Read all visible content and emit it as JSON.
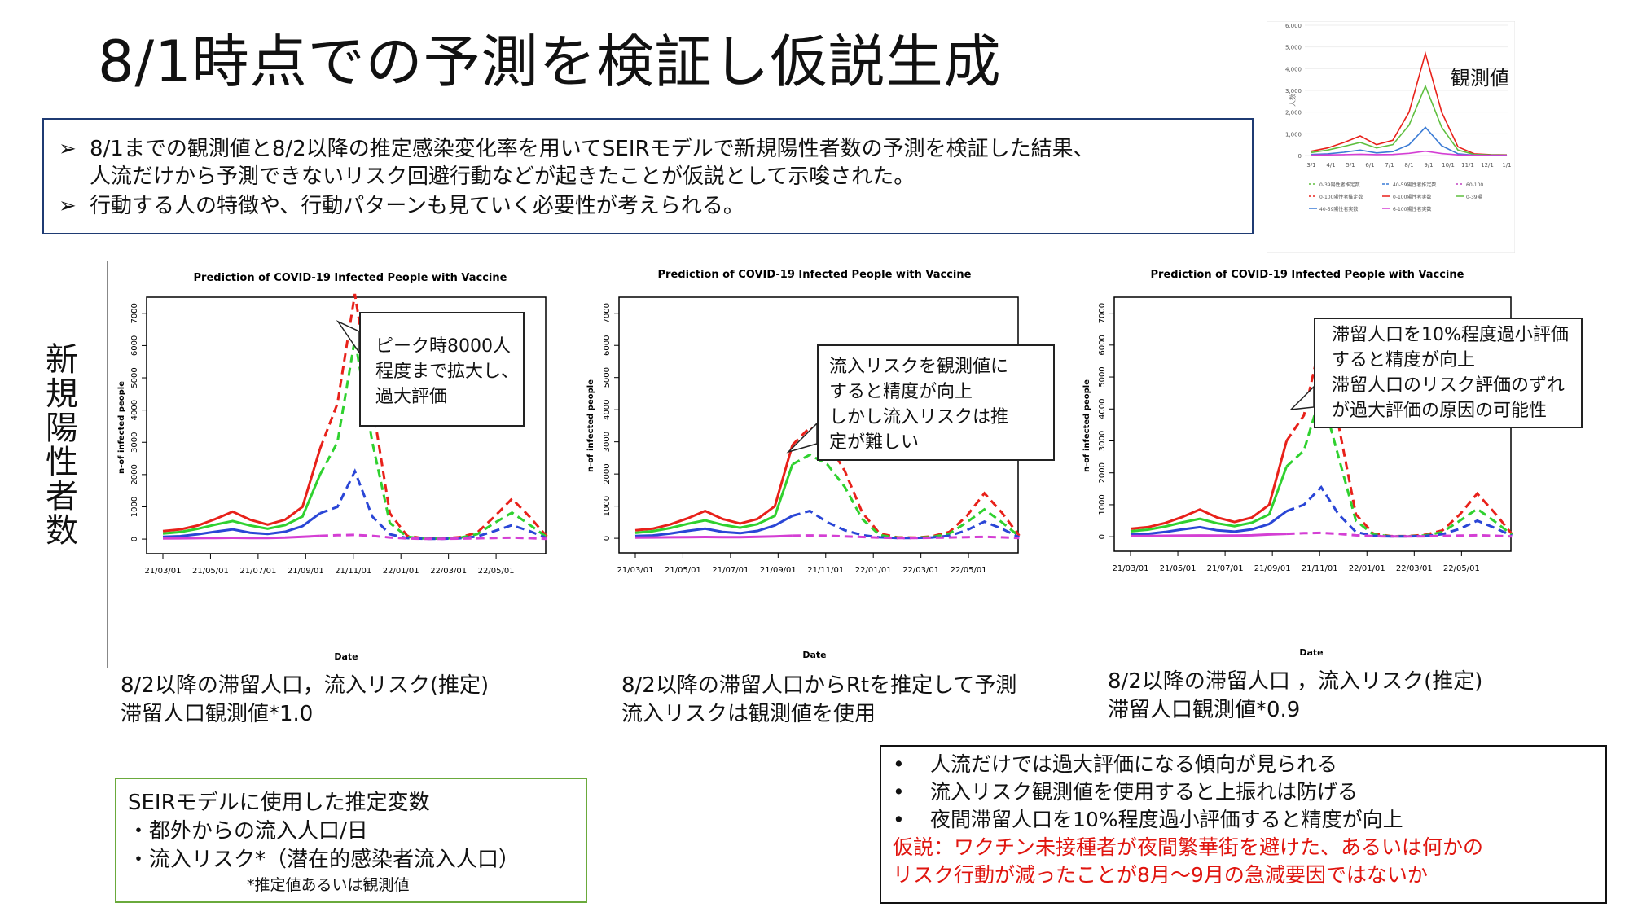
{
  "title": "8/1時点での予測を検証し仮説生成",
  "summary": {
    "bullet1_line1": "8/1までの観測値と8/2以降の推定感染変化率を用いてSEIRモデルで新規陽性者数の予測を検証した結果、",
    "bullet1_line2": "人流だけから予測できないリスク回避行動などが起きたことが仮説として示唆された。",
    "bullet2": "行動する人の特徴や、行動パターンも見ていく必要性が考えられる。",
    "marker": "➢"
  },
  "y_side_label": "新規陽性者数",
  "observed_label": "観測値",
  "captions": {
    "c1_line1": "8/2以降の滞留人口，流入リスク(推定)",
    "c1_line2": "滞留人口観測値*1.0",
    "c2_line1": "8/2以降の滞留人口からRtを推定して予測",
    "c2_line2": "流入リスクは観測値を使用",
    "c3_line1": "8/2以降の滞留人口 ，流入リスク(推定)",
    "c3_line2": "滞留人口観測値*0.9"
  },
  "callouts": {
    "a": [
      "ピーク時8000人",
      "程度まで拡大し、",
      "過大評価"
    ],
    "b": [
      "流入リスクを観測値に",
      "すると精度が向上",
      "しかし流入リスクは推",
      "定が難しい"
    ],
    "c": [
      "滞留人口を10%程度過小評価",
      "すると精度が向上",
      "滞留人口のリスク評価のずれ",
      "が過大評価の原因の可能性"
    ]
  },
  "variables": {
    "heading": "SEIRモデルに使用した推定変数",
    "item1": "・都外からの流入人口/日",
    "item2": "・流入リスク*（潜在的感染者流入人口）",
    "note": "*推定値あるいは観測値"
  },
  "conclusions": {
    "bullet": "•",
    "item1": "人流だけでは過大評価になる傾向が見られる",
    "item2": "流入リスク観測値を使用すると上振れは防げる",
    "item3": "夜間滞留人口を10%程度過小評価すると精度が向上",
    "hyp1": "仮説：ワクチン未接種者が夜間繁華街を避けた、あるいは何かの",
    "hyp2": "リスク行動が減ったことが8月〜9月の急減要因ではないか"
  },
  "chart_data": [
    {
      "type": "line",
      "title": "Prediction of COVID-19 Infected People with Vaccine",
      "xlabel": "Date",
      "ylabel": "n-of infected people",
      "x_tick_labels": [
        "21/03/01",
        "21/05/01",
        "21/07/01",
        "21/09/01",
        "21/11/01",
        "22/01/01",
        "22/03/01",
        "22/05/01"
      ],
      "y_tick_labels": [
        "0",
        "1000",
        "2000",
        "3000",
        "4000",
        "5000",
        "6000",
        "7000"
      ],
      "ylim": [
        -200,
        7500
      ],
      "x_index_range": [
        0,
        21
      ],
      "x_note": "x is half-month index from 2021-03-01",
      "series": [
        {
          "color": "#e8211a",
          "values": [
            250,
            300,
            420,
            620,
            850,
            600,
            450,
            600,
            1000,
            2800,
            4200,
            7600,
            4200,
            800,
            100,
            20,
            20,
            60,
            200,
            700,
            1250,
            700,
            80
          ]
        },
        {
          "color": "#2fd12f",
          "values": [
            170,
            220,
            320,
            450,
            560,
            420,
            320,
            430,
            700,
            2000,
            3000,
            6200,
            3000,
            500,
            70,
            15,
            15,
            40,
            150,
            500,
            820,
            450,
            60
          ]
        },
        {
          "color": "#2a46d6",
          "values": [
            70,
            90,
            150,
            230,
            300,
            200,
            160,
            230,
            400,
            800,
            1000,
            2100,
            700,
            150,
            30,
            10,
            10,
            25,
            80,
            250,
            430,
            250,
            30
          ]
        },
        {
          "color": "#d43fd4",
          "values": [
            20,
            25,
            30,
            35,
            40,
            35,
            35,
            45,
            70,
            100,
            120,
            130,
            100,
            50,
            20,
            10,
            10,
            15,
            25,
            35,
            45,
            30,
            10
          ]
        }
      ]
    },
    {
      "type": "line",
      "title": "Prediction of COVID-19 Infected People with Vaccine",
      "xlabel": "Date",
      "ylabel": "n-of infected people",
      "x_tick_labels": [
        "21/03/01",
        "21/05/01",
        "21/07/01",
        "21/09/01",
        "21/11/01",
        "22/01/01",
        "22/03/01",
        "22/05/01"
      ],
      "y_tick_labels": [
        "0",
        "1000",
        "2000",
        "3000",
        "4000",
        "5000",
        "6000",
        "7000"
      ],
      "ylim": [
        -200,
        7500
      ],
      "x_index_range": [
        0,
        21
      ],
      "x_note": "x is half-month index from 2021-03-01",
      "series": [
        {
          "color": "#e8211a",
          "values": [
            250,
            300,
            430,
            620,
            850,
            600,
            460,
            600,
            1000,
            2900,
            3450,
            3000,
            2100,
            800,
            150,
            30,
            20,
            60,
            200,
            700,
            1400,
            800,
            80
          ]
        },
        {
          "color": "#2fd12f",
          "values": [
            170,
            220,
            320,
            450,
            560,
            420,
            330,
            440,
            700,
            2300,
            2600,
            2300,
            1600,
            600,
            100,
            20,
            15,
            40,
            150,
            500,
            900,
            500,
            60
          ]
        },
        {
          "color": "#2a46d6",
          "values": [
            70,
            90,
            150,
            230,
            300,
            200,
            160,
            230,
            400,
            700,
            850,
            500,
            250,
            100,
            30,
            10,
            10,
            25,
            80,
            250,
            520,
            300,
            30
          ]
        },
        {
          "color": "#d43fd4",
          "values": [
            20,
            25,
            30,
            35,
            40,
            35,
            35,
            45,
            60,
            80,
            90,
            80,
            60,
            40,
            20,
            10,
            10,
            15,
            25,
            35,
            45,
            30,
            10
          ]
        }
      ]
    },
    {
      "type": "line",
      "title": "Prediction of COVID-19 Infected People with Vaccine",
      "xlabel": "Date",
      "ylabel": "n-of infected people",
      "x_tick_labels": [
        "21/03/01",
        "21/05/01",
        "21/07/01",
        "21/09/01",
        "21/11/01",
        "22/01/01",
        "22/03/01",
        "22/05/01"
      ],
      "y_tick_labels": [
        "0",
        "1000",
        "2000",
        "3000",
        "4000",
        "5000",
        "6000",
        "7000"
      ],
      "ylim": [
        -200,
        7500
      ],
      "x_index_range": [
        0,
        21
      ],
      "x_note": "x is half-month index from 2021-03-01",
      "series": [
        {
          "color": "#e8211a",
          "values": [
            250,
            300,
            430,
            620,
            850,
            600,
            460,
            600,
            1000,
            3000,
            3800,
            6200,
            3500,
            700,
            100,
            20,
            20,
            60,
            200,
            700,
            1350,
            750,
            80
          ]
        },
        {
          "color": "#2fd12f",
          "values": [
            170,
            220,
            320,
            450,
            560,
            420,
            330,
            440,
            700,
            2200,
            2700,
            4500,
            2500,
            500,
            70,
            15,
            15,
            40,
            150,
            500,
            870,
            480,
            60
          ]
        },
        {
          "color": "#2a46d6",
          "values": [
            70,
            90,
            150,
            230,
            300,
            200,
            160,
            230,
            400,
            800,
            1000,
            1550,
            700,
            150,
            30,
            10,
            10,
            25,
            80,
            250,
            500,
            280,
            30
          ]
        },
        {
          "color": "#d43fd4",
          "values": [
            20,
            25,
            30,
            35,
            40,
            35,
            35,
            45,
            70,
            90,
            110,
            120,
            90,
            45,
            20,
            10,
            10,
            15,
            25,
            35,
            45,
            30,
            10
          ]
        }
      ]
    },
    {
      "type": "line",
      "ylabel": "人数",
      "x_tick_labels": [
        "3/1",
        "4/1",
        "5/1",
        "6/1",
        "7/1",
        "8/1",
        "9/1",
        "10/1",
        "11/1",
        "12/1",
        "1/1"
      ],
      "y_tick_labels": [
        "0",
        "1,000",
        "2,000",
        "3,000",
        "4,000",
        "5,000",
        "6,000"
      ],
      "ylim": [
        0,
        6000
      ],
      "legend": [
        "0-39陽性者推定数",
        "40-59陽性者推定数",
        "60-100",
        "0-100陽性者推定数",
        "0-100陽性者実数",
        "0-39陽",
        "40-59陽性者実数",
        "6-100陽性者実数"
      ],
      "legend_colors": [
        "#5fbf3f",
        "#3a7bd5",
        "#c040c0",
        "#e8211a",
        "#e8211a",
        "#5fbf3f",
        "#3a7bd5",
        "#d43fd4"
      ],
      "series": [
        {
          "color": "#e8211a",
          "values": [
            200,
            350,
            600,
            900,
            500,
            700,
            2000,
            4700,
            2000,
            400,
            80,
            40,
            30
          ]
        },
        {
          "color": "#5fbf3f",
          "values": [
            140,
            250,
            420,
            600,
            350,
            500,
            1400,
            3200,
            1300,
            250,
            50,
            25,
            20
          ]
        },
        {
          "color": "#3a7bd5",
          "values": [
            50,
            80,
            150,
            250,
            120,
            180,
            500,
            1300,
            450,
            80,
            20,
            10,
            10
          ]
        },
        {
          "color": "#d43fd4",
          "values": [
            20,
            30,
            40,
            60,
            40,
            50,
            100,
            200,
            90,
            30,
            10,
            5,
            5
          ]
        }
      ]
    }
  ]
}
